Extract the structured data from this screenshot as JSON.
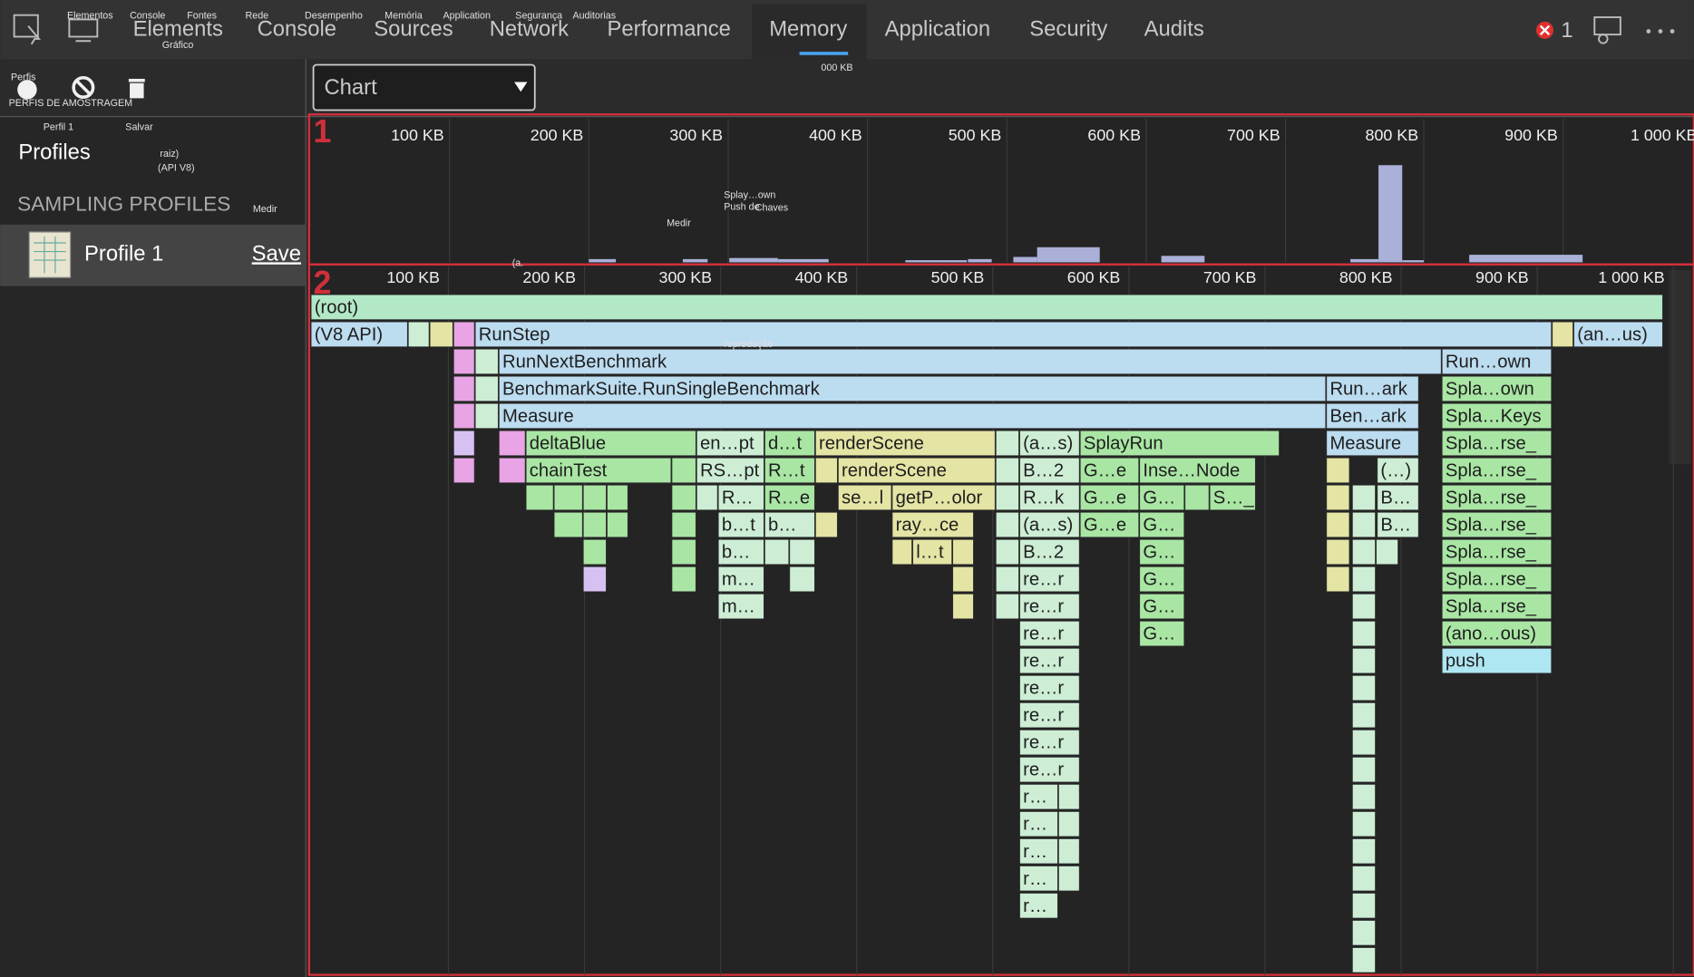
{
  "toolbar": {
    "tabs": [
      "Elements",
      "Console",
      "Sources",
      "Network",
      "Performance",
      "Memory",
      "Application",
      "Security",
      "Audits"
    ],
    "error_count": "1"
  },
  "view_select": "Chart",
  "sidebar": {
    "title": "Profiles",
    "section": "SAMPLING PROFILES",
    "profile_name": "Profile 1",
    "save": "Save"
  },
  "panel_markers": [
    "1",
    "2"
  ],
  "overview": {
    "ticks": [
      "100 KB",
      "200 KB",
      "300 KB",
      "400 KB",
      "500 KB",
      "600 KB",
      "700 KB",
      "800 KB",
      "900 KB",
      "1 000 KB"
    ]
  },
  "flame": {
    "ticks": [
      "100 KB",
      "200 KB",
      "300 KB",
      "400 KB",
      "500 KB",
      "600 KB",
      "700 KB",
      "800 KB",
      "900 KB",
      "1 000 KB"
    ],
    "frames": [
      "(root)",
      "(V8 API)",
      "RunStep",
      "(an…us)",
      "RunNextBenchmark",
      "Run…own",
      "BenchmarkSuite.RunSingleBenchmark",
      "Run…ark",
      "Spla…own",
      "Measure",
      "Ben…ark",
      "Spla…Keys",
      "deltaBlue",
      "en…pt",
      "d…t",
      "renderScene",
      "(a…s)",
      "SplayRun",
      "Measure",
      "Spla…rse_",
      "chainTest",
      "RS…pt",
      "R…t",
      "renderScene",
      "B…2",
      "G…e",
      "Inse…Node",
      "(…)",
      "Spla…rse_",
      "R…",
      "R…e",
      "se…l",
      "getP…olor",
      "R…k",
      "G…e",
      "G…",
      "S…_",
      "B…",
      "Spla…rse_",
      "b…t",
      "b…",
      "ray…ce",
      "(a…s)",
      "G…e",
      "G…",
      "B…",
      "Spla…rse_",
      "b…",
      "l…t",
      "B…2",
      "G…",
      "Spla…rse_",
      "m…",
      "re…r",
      "G…",
      "Spla…rse_",
      "m…",
      "re…r",
      "G…",
      "Spla…rse_",
      "re…r",
      "G…",
      "(ano…ous)",
      "re…r",
      "push",
      "re…r",
      "re…r",
      "re…r",
      "re…r",
      "r…",
      "r…",
      "r…",
      "r…",
      "r…"
    ]
  },
  "overlay_labels": [
    "Elementos",
    "Console",
    "Fontes",
    "Rede",
    "Desempenho",
    "Memória",
    "Application",
    "Segurança",
    "Auditorias",
    "Gráfico",
    "Perfis",
    "PERFIS DE AMOSTRAGEM",
    "Perfil 1",
    "Salvar",
    "raiz)",
    "(API V8)",
    "Medir",
    "Medir",
    "Splay…own",
    "Push de",
    "Chaves",
    "000 KB",
    "reprodução",
    "(a."
  ]
}
